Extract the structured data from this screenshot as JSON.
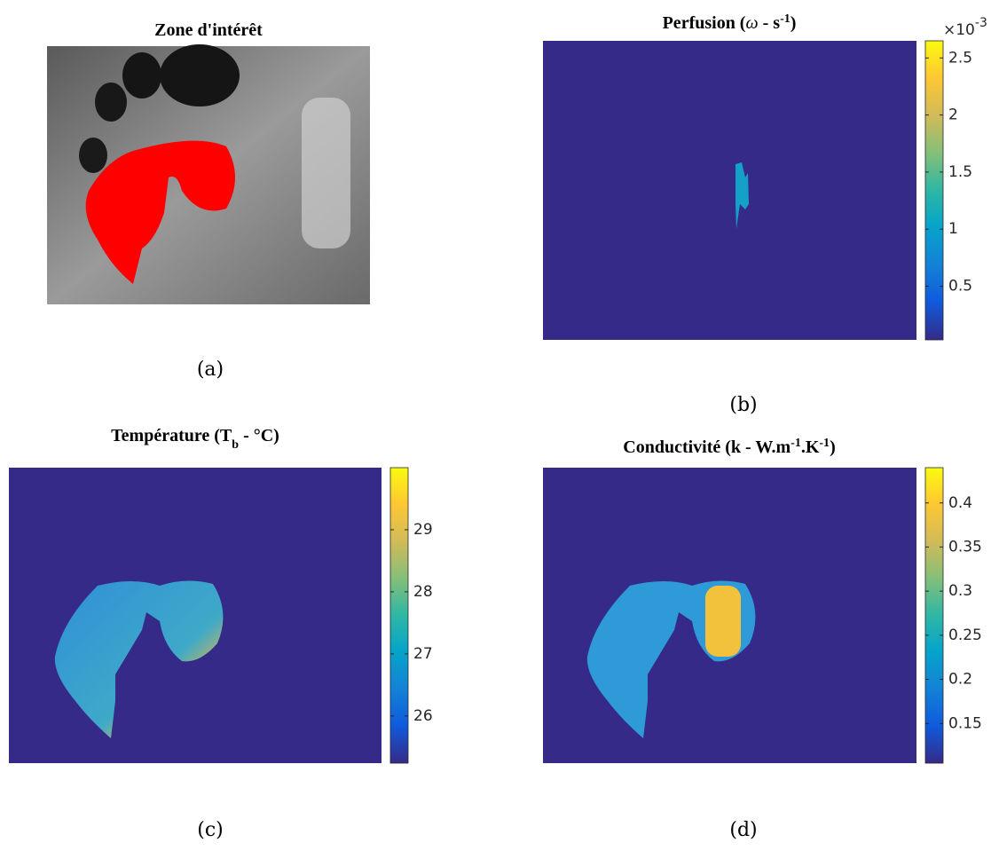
{
  "panels": [
    {
      "title": [
        {
          "text": "Zone d'intérêt"
        }
      ],
      "caption": "(a)"
    },
    {
      "title": [
        {
          "text": "Perfusion ("
        },
        {
          "text": "ω",
          "style": "italic"
        },
        {
          "text": " - s"
        },
        {
          "text": "-1",
          "style": "sup"
        },
        {
          "text": ")"
        }
      ],
      "caption": "(b)",
      "colorbar": {
        "lim": [
          0.03,
          2.65
        ],
        "ticks": [
          0.5,
          1,
          1.5,
          2,
          2.5
        ],
        "multiplier": [
          {
            "text": "×10"
          },
          {
            "text": "-3",
            "style": "sup"
          }
        ]
      }
    },
    {
      "title": [
        {
          "text": "Température (T"
        },
        {
          "text": "b",
          "style": "sub"
        },
        {
          "text": " - °C)"
        }
      ],
      "caption": "(c)",
      "colorbar": {
        "lim": [
          25.24,
          30
        ],
        "ticks": [
          26,
          27,
          28,
          29
        ]
      }
    },
    {
      "title": [
        {
          "text": "Conductivité (k - W.m"
        },
        {
          "text": "-1",
          "style": "sup"
        },
        {
          "text": ".K"
        },
        {
          "text": "-1",
          "style": "sup"
        },
        {
          "text": ")"
        }
      ],
      "caption": "(d)",
      "colorbar": {
        "lim": [
          0.105,
          0.44
        ],
        "ticks": [
          0.15,
          0.2,
          0.25,
          0.3,
          0.35,
          0.4
        ]
      }
    }
  ]
}
